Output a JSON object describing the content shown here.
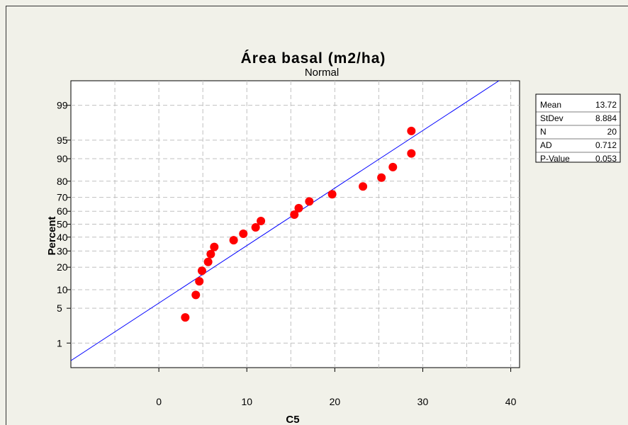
{
  "chart_data": {
    "type": "scatter",
    "title": "Área basal  (m2/ha)",
    "subtitle": "Normal",
    "xlabel": "C5",
    "ylabel": "Percent",
    "xlim": [
      -10,
      41
    ],
    "x_ticks": [
      0,
      10,
      20,
      30,
      40
    ],
    "y_ticks": [
      1,
      5,
      10,
      20,
      30,
      40,
      50,
      60,
      70,
      80,
      90,
      95,
      99
    ],
    "y_scale": "normal-probability",
    "grid": true,
    "series": [
      {
        "color": "#ff0000",
        "points": [
          {
            "x": 3.0,
            "y": 3.4
          },
          {
            "x": 4.2,
            "y": 8.3
          },
          {
            "x": 4.6,
            "y": 13.2
          },
          {
            "x": 4.9,
            "y": 18.1
          },
          {
            "x": 5.6,
            "y": 23.0
          },
          {
            "x": 5.9,
            "y": 27.9
          },
          {
            "x": 6.3,
            "y": 32.8
          },
          {
            "x": 8.5,
            "y": 37.7
          },
          {
            "x": 9.6,
            "y": 42.6
          },
          {
            "x": 11.0,
            "y": 47.5
          },
          {
            "x": 11.6,
            "y": 52.5
          },
          {
            "x": 15.4,
            "y": 57.4
          },
          {
            "x": 15.9,
            "y": 62.3
          },
          {
            "x": 17.1,
            "y": 67.2
          },
          {
            "x": 19.7,
            "y": 72.1
          },
          {
            "x": 23.2,
            "y": 77.0
          },
          {
            "x": 25.3,
            "y": 81.9
          },
          {
            "x": 26.6,
            "y": 86.8
          },
          {
            "x": 28.7,
            "y": 91.7
          },
          {
            "x": 28.7,
            "y": 96.6
          }
        ]
      }
    ],
    "fit_line": {
      "type": "normal-reference",
      "mean": 13.72,
      "stdev": 8.884,
      "color": "#0000ff"
    },
    "stats_box": {
      "position": "right",
      "rows": [
        {
          "label": "Mean",
          "value": "13.72"
        },
        {
          "label": "StDev",
          "value": "8.884"
        },
        {
          "label": "N",
          "value": "20"
        },
        {
          "label": "AD",
          "value": "0.712"
        },
        {
          "label": "P-Value",
          "value": "0.053"
        }
      ]
    },
    "colors": {
      "background": "#f1f1e9",
      "plot_area": "#ffffff",
      "points": "#ff0000",
      "fit_line": "#0000ff",
      "grid": "#c0c0c0"
    }
  }
}
